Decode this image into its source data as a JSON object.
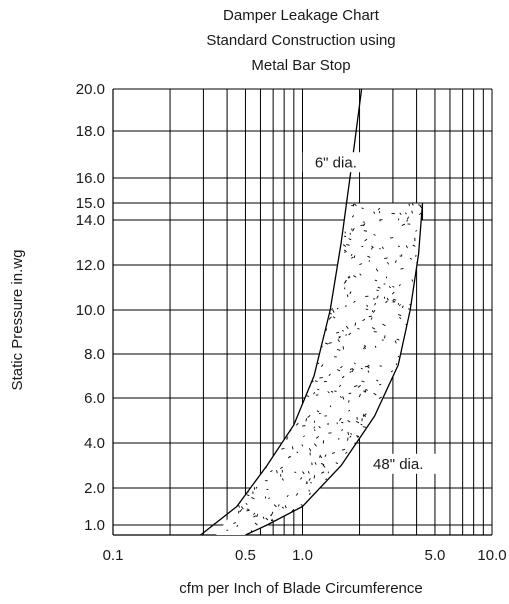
{
  "chart_data": {
    "type": "line",
    "title_lines": [
      "Damper Leakage Chart",
      "Standard Construction using",
      "Metal Bar Stop"
    ],
    "xlabel": "cfm per Inch of Blade Circumference",
    "ylabel": "Static Pressure in.wg",
    "x_scale": "log",
    "xlim": [
      0.1,
      10.0
    ],
    "ylim": [
      0.5,
      20.0
    ],
    "x_ticks": [
      {
        "value": 0.1,
        "label": "0.1"
      },
      {
        "value": 0.5,
        "label": "0.5"
      },
      {
        "value": 1.0,
        "label": "1.0"
      },
      {
        "value": 5.0,
        "label": "5.0"
      },
      {
        "value": 10.0,
        "label": "10.0"
      }
    ],
    "y_ticks": [
      {
        "value": 1.0,
        "label": "1.0"
      },
      {
        "value": 2.0,
        "label": "2.0"
      },
      {
        "value": 4.0,
        "label": "4.0"
      },
      {
        "value": 6.0,
        "label": "6.0"
      },
      {
        "value": 8.0,
        "label": "8.0"
      },
      {
        "value": 10.0,
        "label": "10.0"
      },
      {
        "value": 12.0,
        "label": "12.0"
      },
      {
        "value": 14.0,
        "label": "14.0"
      },
      {
        "value": 15.0,
        "label": "15.0"
      },
      {
        "value": 16.0,
        "label": "16.0"
      },
      {
        "value": 18.0,
        "label": "18.0"
      },
      {
        "value": 20.0,
        "label": "20.0"
      }
    ],
    "grid": true,
    "series": [
      {
        "name": "6\" dia.",
        "points": [
          [
            0.29,
            0.5
          ],
          [
            0.45,
            1.5
          ],
          [
            0.65,
            3.0
          ],
          [
            0.9,
            4.8
          ],
          [
            1.15,
            7.0
          ],
          [
            1.4,
            10.0
          ],
          [
            1.6,
            13.0
          ],
          [
            1.85,
            17.0
          ],
          [
            2.05,
            20.0
          ]
        ]
      },
      {
        "name": "48\" dia.",
        "points": [
          [
            0.5,
            0.5
          ],
          [
            0.65,
            1.0
          ],
          [
            1.0,
            1.5
          ],
          [
            1.6,
            3.0
          ],
          [
            2.4,
            5.2
          ],
          [
            3.2,
            7.5
          ],
          [
            3.7,
            10.0
          ],
          [
            4.1,
            12.5
          ],
          [
            4.3,
            15.0
          ]
        ]
      }
    ],
    "shaded_region": {
      "description_label": "",
      "pressure_top": 15.0,
      "left_edge": [
        [
          0.35,
          0.5
        ],
        [
          0.45,
          1.5
        ],
        [
          0.65,
          3.0
        ],
        [
          0.9,
          4.8
        ],
        [
          1.15,
          7.0
        ],
        [
          1.4,
          10.0
        ],
        [
          1.6,
          13.0
        ],
        [
          1.7,
          15.0
        ]
      ],
      "right_edge": [
        [
          0.5,
          0.5
        ],
        [
          0.65,
          1.0
        ],
        [
          1.0,
          1.5
        ],
        [
          1.6,
          3.0
        ],
        [
          2.4,
          5.2
        ],
        [
          3.2,
          7.5
        ],
        [
          3.7,
          10.0
        ],
        [
          4.1,
          12.5
        ],
        [
          4.3,
          15.0
        ]
      ]
    },
    "annotations": [
      {
        "text": "6\" dia.",
        "x": 1.5,
        "y": 16.5
      },
      {
        "text": "48\" dia.",
        "x": 3.2,
        "y": 2.9
      }
    ]
  }
}
